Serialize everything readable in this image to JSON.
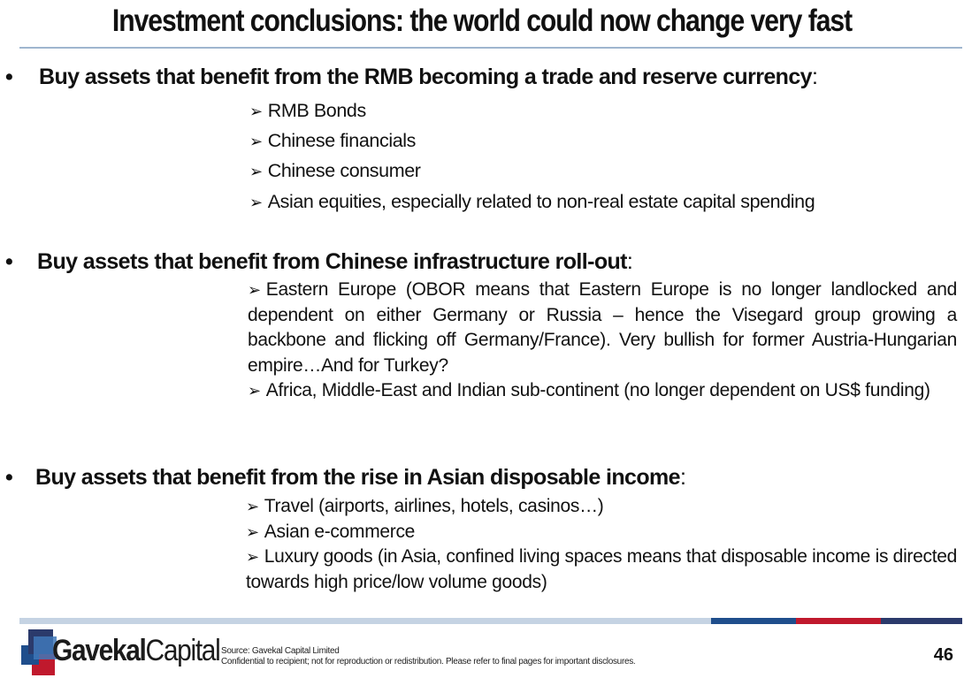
{
  "title": "Investment conclusions: the world could now change very fast",
  "sections": [
    {
      "heading": "Buy assets that benefit from the RMB becoming a trade and reserve currency",
      "colon": ":",
      "items": [
        "RMB Bonds",
        "Chinese financials",
        "Chinese consumer",
        "Asian equities, especially related to non-real estate capital spending"
      ]
    },
    {
      "heading": "Buy assets that benefit from Chinese infrastructure roll-out",
      "colon": ":",
      "items": [
        "Eastern Europe (OBOR means that Eastern Europe is no longer landlocked and dependent on either Germany or Russia – hence the Visegard group growing a backbone and flicking off Germany/France). Very bullish for former Austria-Hungarian empire…And for Turkey?",
        "Africa, Middle-East and Indian sub-continent (no longer dependent on US$ funding)"
      ]
    },
    {
      "heading": "Buy assets that benefit from the rise in Asian disposable income",
      "colon": ":",
      "items": [
        "Travel (airports, airlines, hotels, casinos…)",
        "Asian e-commerce",
        "Luxury goods (in Asia, confined living spaces means that disposable income is directed towards high price/low volume goods)"
      ]
    }
  ],
  "bullet_glyph": "•",
  "arrow_glyph": "➢",
  "footer": {
    "logo_bold": "Gavekal",
    "logo_regular": "Capital",
    "source_line": "Source: Gavekal Capital Limited",
    "disclaimer": "Confidential to recipient; not for reproduction or redistribution. Please refer to final pages for important disclosures.",
    "page_number": "46"
  },
  "colors": {
    "title_rule": "#9fb6cf",
    "footer_light": "#c5d3e3",
    "footer_blue": "#1f4e8c",
    "footer_red": "#c0192d",
    "footer_navy": "#2b3a6b"
  }
}
